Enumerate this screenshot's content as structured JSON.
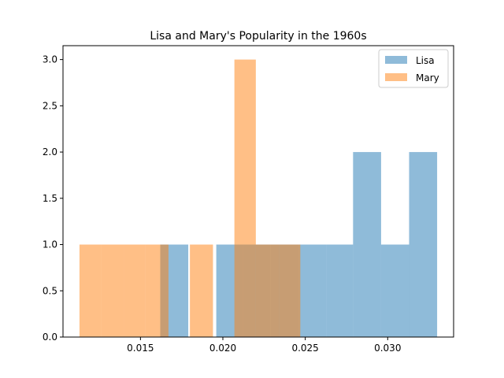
{
  "chart_data": {
    "type": "histogram",
    "title": "Lisa and Mary's Popularity in the 1960s",
    "xlabel": "",
    "ylabel": "",
    "xlim": [
      0.0103,
      0.034
    ],
    "ylim": [
      0,
      3.15
    ],
    "xticks": [
      0.015,
      0.02,
      0.025,
      0.03
    ],
    "xtick_labels": [
      "0.015",
      "0.020",
      "0.025",
      "0.030"
    ],
    "yticks": [
      0.0,
      0.5,
      1.0,
      1.5,
      2.0,
      2.5,
      3.0
    ],
    "ytick_labels": [
      "0.0",
      "0.5",
      "1.0",
      "1.5",
      "2.0",
      "2.5",
      "3.0"
    ],
    "grid": false,
    "legend_position": "top-right",
    "series": [
      {
        "name": "Lisa",
        "color": "#1f77b4",
        "alpha": 0.5,
        "bins": [
          {
            "x0": 0.0162,
            "x1": 0.0179,
            "count": 1
          },
          {
            "x0": 0.0179,
            "x1": 0.0196,
            "count": 0
          },
          {
            "x0": 0.0196,
            "x1": 0.0212,
            "count": 1
          },
          {
            "x0": 0.0212,
            "x1": 0.0229,
            "count": 1
          },
          {
            "x0": 0.0229,
            "x1": 0.0246,
            "count": 1
          },
          {
            "x0": 0.0246,
            "x1": 0.0263,
            "count": 1
          },
          {
            "x0": 0.0263,
            "x1": 0.0279,
            "count": 1
          },
          {
            "x0": 0.0279,
            "x1": 0.0296,
            "count": 2
          },
          {
            "x0": 0.0296,
            "x1": 0.0313,
            "count": 1
          },
          {
            "x0": 0.0313,
            "x1": 0.033,
            "count": 2
          }
        ]
      },
      {
        "name": "Mary",
        "color": "#ff7f0e",
        "alpha": 0.5,
        "bins": [
          {
            "x0": 0.0113,
            "x1": 0.0126,
            "count": 1
          },
          {
            "x0": 0.0126,
            "x1": 0.014,
            "count": 1
          },
          {
            "x0": 0.014,
            "x1": 0.0153,
            "count": 1
          },
          {
            "x0": 0.0153,
            "x1": 0.0167,
            "count": 1
          },
          {
            "x0": 0.0167,
            "x1": 0.018,
            "count": 0
          },
          {
            "x0": 0.018,
            "x1": 0.0194,
            "count": 1
          },
          {
            "x0": 0.0194,
            "x1": 0.0207,
            "count": 0
          },
          {
            "x0": 0.0207,
            "x1": 0.022,
            "count": 3
          },
          {
            "x0": 0.022,
            "x1": 0.0234,
            "count": 1
          },
          {
            "x0": 0.0234,
            "x1": 0.0247,
            "count": 1
          }
        ]
      }
    ]
  }
}
